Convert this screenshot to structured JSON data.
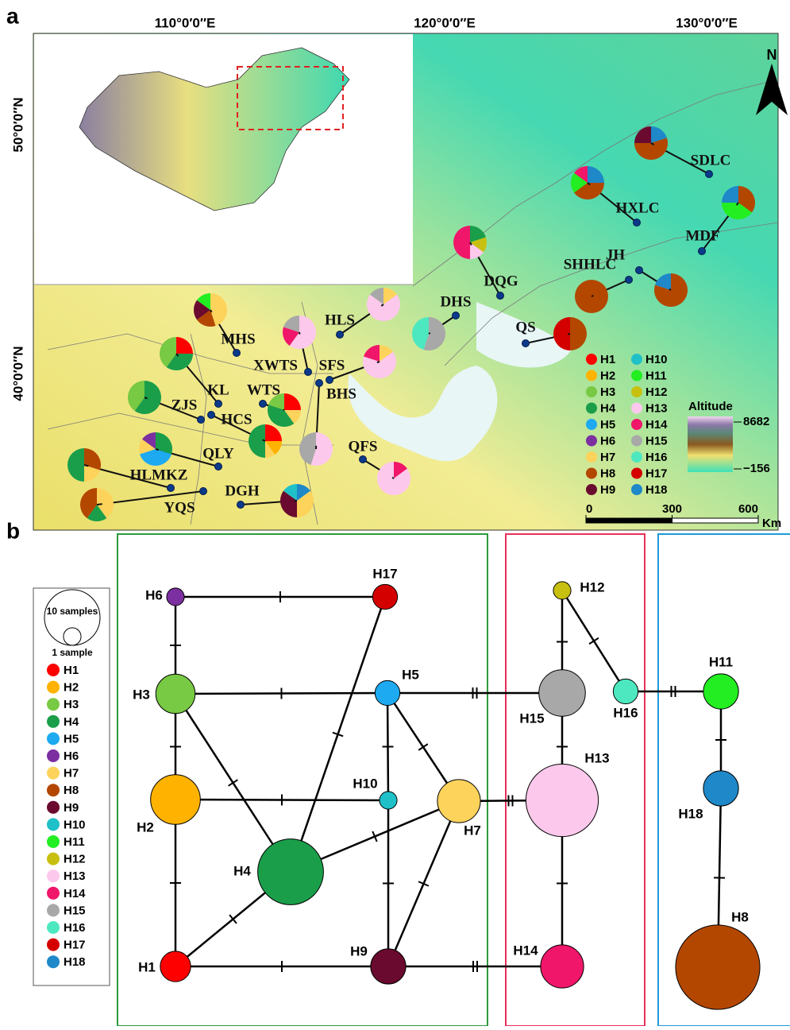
{
  "panels": {
    "a": "a",
    "b": "b"
  },
  "map": {
    "longitudes": [
      {
        "value": 110,
        "label": "110°0′0″E"
      },
      {
        "value": 120,
        "label": "120°0′0″E"
      },
      {
        "value": 130,
        "label": "130°0′0″E"
      }
    ],
    "latitudes": [
      {
        "value": 50,
        "label": "50°0′0″N"
      },
      {
        "value": 40,
        "label": "40°0′0″N"
      }
    ],
    "north": "N",
    "sites": [
      {
        "name": "SDLC",
        "pie": [
          {
            "h": "H18",
            "share": 20
          },
          {
            "h": "H8",
            "share": 55
          },
          {
            "h": "H9",
            "share": 25
          }
        ]
      },
      {
        "name": "HXLC",
        "pie": [
          {
            "h": "H18",
            "share": 25
          },
          {
            "h": "H8",
            "share": 40
          },
          {
            "h": "H11",
            "share": 20
          },
          {
            "h": "H14",
            "share": 15
          }
        ]
      },
      {
        "name": "MDF",
        "pie": [
          {
            "h": "H8",
            "share": 35
          },
          {
            "h": "H11",
            "share": 40
          },
          {
            "h": "H18",
            "share": 25
          }
        ]
      },
      {
        "name": "JH",
        "pie": [
          {
            "h": "H8",
            "share": 80
          },
          {
            "h": "H18",
            "share": 20
          }
        ]
      },
      {
        "name": "SHHLC",
        "pie": [
          {
            "h": "H8",
            "share": 100
          }
        ]
      },
      {
        "name": "DQG",
        "pie": [
          {
            "h": "H4",
            "share": 20
          },
          {
            "h": "H12",
            "share": 15
          },
          {
            "h": "H13",
            "share": 15
          },
          {
            "h": "H14",
            "share": 50
          }
        ]
      },
      {
        "name": "DHS",
        "pie": [
          {
            "h": "H15",
            "share": 55
          },
          {
            "h": "H16",
            "share": 45
          }
        ]
      },
      {
        "name": "QS",
        "pie": [
          {
            "h": "H8",
            "share": 50
          },
          {
            "h": "H17",
            "share": 50
          }
        ]
      },
      {
        "name": "HLS",
        "pie": [
          {
            "h": "H7",
            "share": 15
          },
          {
            "h": "H13",
            "share": 70
          },
          {
            "h": "H15",
            "share": 15
          }
        ]
      },
      {
        "name": "MHS",
        "pie": [
          {
            "h": "H7",
            "share": 45
          },
          {
            "h": "H8",
            "share": 20
          },
          {
            "h": "H9",
            "share": 20
          },
          {
            "h": "H11",
            "share": 15
          }
        ]
      },
      {
        "name": "XWTS",
        "pie": [
          {
            "h": "H13",
            "share": 60
          },
          {
            "h": "H14",
            "share": 20
          },
          {
            "h": "H15",
            "share": 20
          }
        ]
      },
      {
        "name": "SFS",
        "pie": [
          {
            "h": "H7",
            "share": 15
          },
          {
            "h": "H13",
            "share": 65
          },
          {
            "h": "H14",
            "share": 20
          }
        ]
      },
      {
        "name": "BHS",
        "pie": [
          {
            "h": "H13",
            "share": 55
          },
          {
            "h": "H15",
            "share": 45
          }
        ]
      },
      {
        "name": "KL",
        "pie": [
          {
            "h": "H1",
            "share": 25
          },
          {
            "h": "H4",
            "share": 35
          },
          {
            "h": "H3",
            "share": 40
          }
        ]
      },
      {
        "name": "ZJS",
        "pie": [
          {
            "h": "H4",
            "share": 60
          },
          {
            "h": "H3",
            "share": 40
          }
        ]
      },
      {
        "name": "HCS",
        "pie": [
          {
            "h": "H1",
            "share": 25
          },
          {
            "h": "H2",
            "share": 15
          },
          {
            "h": "H7",
            "share": 10
          },
          {
            "h": "H4",
            "share": 50
          }
        ]
      },
      {
        "name": "WTS",
        "pie": [
          {
            "h": "H1",
            "share": 25
          },
          {
            "h": "H7",
            "share": 15
          },
          {
            "h": "H4",
            "share": 40
          },
          {
            "h": "H3",
            "share": 20
          }
        ]
      },
      {
        "name": "QLY",
        "pie": [
          {
            "h": "H4",
            "share": 30
          },
          {
            "h": "H5",
            "share": 40
          },
          {
            "h": "H7",
            "share": 15
          },
          {
            "h": "H6",
            "share": 15
          }
        ]
      },
      {
        "name": "HLMKZ",
        "pie": [
          {
            "h": "H8",
            "share": 30
          },
          {
            "h": "H7",
            "share": 20
          },
          {
            "h": "H4",
            "share": 50
          }
        ]
      },
      {
        "name": "YQS",
        "pie": [
          {
            "h": "H7",
            "share": 40
          },
          {
            "h": "H4",
            "share": 20
          },
          {
            "h": "H8",
            "share": 40
          }
        ]
      },
      {
        "name": "DGH",
        "pie": [
          {
            "h": "H18",
            "share": 15
          },
          {
            "h": "H7",
            "share": 35
          },
          {
            "h": "H9",
            "share": 35
          },
          {
            "h": "H10",
            "share": 15
          }
        ]
      },
      {
        "name": "QFS",
        "pie": [
          {
            "h": "H14",
            "share": 15
          },
          {
            "h": "H13",
            "share": 85
          }
        ]
      }
    ],
    "altitude": {
      "title": "Altitude",
      "max": 8682,
      "min": {
        "value": -156,
        "label": "−156"
      }
    },
    "scale": {
      "ticks": [
        0,
        300,
        600
      ],
      "unit": "Km"
    }
  },
  "haplotypes": [
    {
      "name": "H1",
      "color": "#ff0000"
    },
    {
      "name": "H2",
      "color": "#ffb300"
    },
    {
      "name": "H3",
      "color": "#78c943"
    },
    {
      "name": "H4",
      "color": "#1a9e4a"
    },
    {
      "name": "H5",
      "color": "#1eaaf1"
    },
    {
      "name": "H6",
      "color": "#7b2fa0"
    },
    {
      "name": "H7",
      "color": "#fdd35c"
    },
    {
      "name": "H8",
      "color": "#b34700"
    },
    {
      "name": "H9",
      "color": "#6a0a2e"
    },
    {
      "name": "H10",
      "color": "#20c0c8"
    },
    {
      "name": "H11",
      "color": "#22ee22"
    },
    {
      "name": "H12",
      "color": "#c8c010"
    },
    {
      "name": "H13",
      "color": "#fcc8ec"
    },
    {
      "name": "H14",
      "color": "#f0166a"
    },
    {
      "name": "H15",
      "color": "#a8a8a8"
    },
    {
      "name": "H16",
      "color": "#4de8c0"
    },
    {
      "name": "H17",
      "color": "#d40000"
    },
    {
      "name": "H18",
      "color": "#1e88c8"
    }
  ],
  "network": {
    "legend": [
      {
        "label": "10 samples",
        "value": 10
      },
      {
        "label": "1 sample",
        "value": 1
      }
    ],
    "nodes": [
      {
        "name": "H1",
        "samples": 3
      },
      {
        "name": "H2",
        "samples": 8
      },
      {
        "name": "H3",
        "samples": 5
      },
      {
        "name": "H4",
        "samples": 14
      },
      {
        "name": "H5",
        "samples": 2
      },
      {
        "name": "H6",
        "samples": 1
      },
      {
        "name": "H7",
        "samples": 6
      },
      {
        "name": "H8",
        "samples": 23
      },
      {
        "name": "H9",
        "samples": 4
      },
      {
        "name": "H10",
        "samples": 1
      },
      {
        "name": "H11",
        "samples": 4
      },
      {
        "name": "H12",
        "samples": 1
      },
      {
        "name": "H13",
        "samples": 17
      },
      {
        "name": "H14",
        "samples": 6
      },
      {
        "name": "H15",
        "samples": 7
      },
      {
        "name": "H16",
        "samples": 2
      },
      {
        "name": "H17",
        "samples": 2
      },
      {
        "name": "H18",
        "samples": 4
      }
    ],
    "edges": [
      {
        "from": "H6",
        "to": "H17",
        "steps": 1
      },
      {
        "from": "H6",
        "to": "H3",
        "steps": 1
      },
      {
        "from": "H3",
        "to": "H5",
        "steps": 1
      },
      {
        "from": "H3",
        "to": "H2",
        "steps": 1
      },
      {
        "from": "H3",
        "to": "H4",
        "steps": 1
      },
      {
        "from": "H5",
        "to": "H15",
        "steps": 2
      },
      {
        "from": "H5",
        "to": "H10",
        "steps": 1
      },
      {
        "from": "H5",
        "to": "H7",
        "steps": 1
      },
      {
        "from": "H2",
        "to": "H10",
        "steps": 1
      },
      {
        "from": "H2",
        "to": "H1",
        "steps": 1
      },
      {
        "from": "H4",
        "to": "H17",
        "steps": 1
      },
      {
        "from": "H4",
        "to": "H7",
        "steps": 1
      },
      {
        "from": "H4",
        "to": "H1",
        "steps": 1
      },
      {
        "from": "H10",
        "to": "H9",
        "steps": 1
      },
      {
        "from": "H7",
        "to": "H9",
        "steps": 1
      },
      {
        "from": "H7",
        "to": "H13",
        "steps": 2
      },
      {
        "from": "H1",
        "to": "H9",
        "steps": 1
      },
      {
        "from": "H9",
        "to": "H14",
        "steps": 2
      },
      {
        "from": "H12",
        "to": "H15",
        "steps": 1
      },
      {
        "from": "H12",
        "to": "H16",
        "steps": 1
      },
      {
        "from": "H15",
        "to": "H13",
        "steps": 1
      },
      {
        "from": "H13",
        "to": "H14",
        "steps": 1
      },
      {
        "from": "H16",
        "to": "H11",
        "steps": 2
      },
      {
        "from": "H11",
        "to": "H18",
        "steps": 1
      },
      {
        "from": "H18",
        "to": "H8",
        "steps": 1
      }
    ]
  }
}
